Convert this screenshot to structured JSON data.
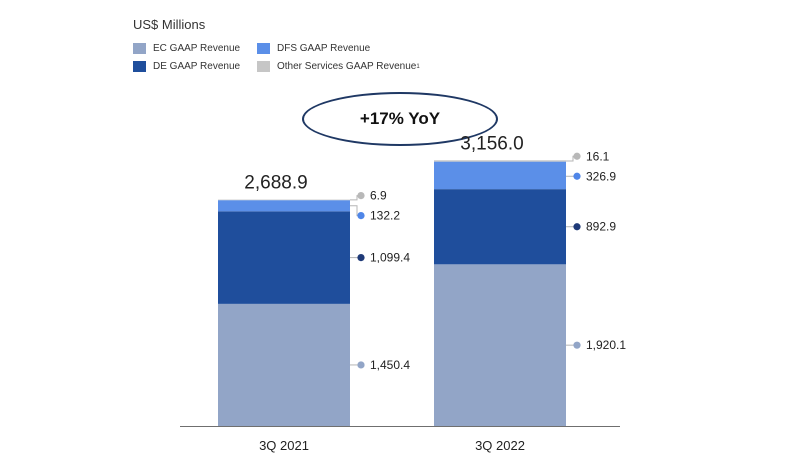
{
  "unit_label": "US$ Millions",
  "legend": [
    {
      "label": "EC GAAP Revenue",
      "sup": "",
      "color": "#92a5c7"
    },
    {
      "label": "DFS GAAP Revenue",
      "sup": "",
      "color": "#5b8fe8"
    },
    {
      "label": "DE GAAP Revenue",
      "sup": "",
      "color": "#1f4e9c"
    },
    {
      "label": "Other Services GAAP Revenue",
      "sup": "1",
      "color": "#c6c6c6"
    }
  ],
  "callout": "+17% YoY",
  "chart_data": {
    "type": "bar",
    "stacked": true,
    "title": "",
    "unit": "US$ Millions",
    "categories": [
      "3Q 2021",
      "3Q 2022"
    ],
    "totals": [
      2688.9,
      3156.0
    ],
    "total_labels": [
      "2,688.9",
      "3,156.0"
    ],
    "series": [
      {
        "name": "EC GAAP Revenue",
        "color": "#92a5c7",
        "dot_color": "#92a5c7",
        "values": [
          1450.4,
          1920.1
        ],
        "labels": [
          "1,450.4",
          "1,920.1"
        ]
      },
      {
        "name": "DE GAAP Revenue",
        "color": "#1f4e9c",
        "dot_color": "#1f3a78",
        "values": [
          1099.4,
          892.9
        ],
        "labels": [
          "1,099.4",
          "892.9"
        ]
      },
      {
        "name": "DFS GAAP Revenue",
        "color": "#5b8fe8",
        "dot_color": "#4f86e8",
        "values": [
          132.2,
          326.9
        ],
        "labels": [
          "132.2",
          "326.9"
        ]
      },
      {
        "name": "Other Services GAAP Revenue",
        "color": "#c6c6c6",
        "dot_color": "#b8b8b8",
        "values": [
          6.9,
          16.1
        ],
        "labels": [
          "6.9",
          "16.1"
        ]
      }
    ],
    "ylim": [
      0,
      3400
    ]
  }
}
